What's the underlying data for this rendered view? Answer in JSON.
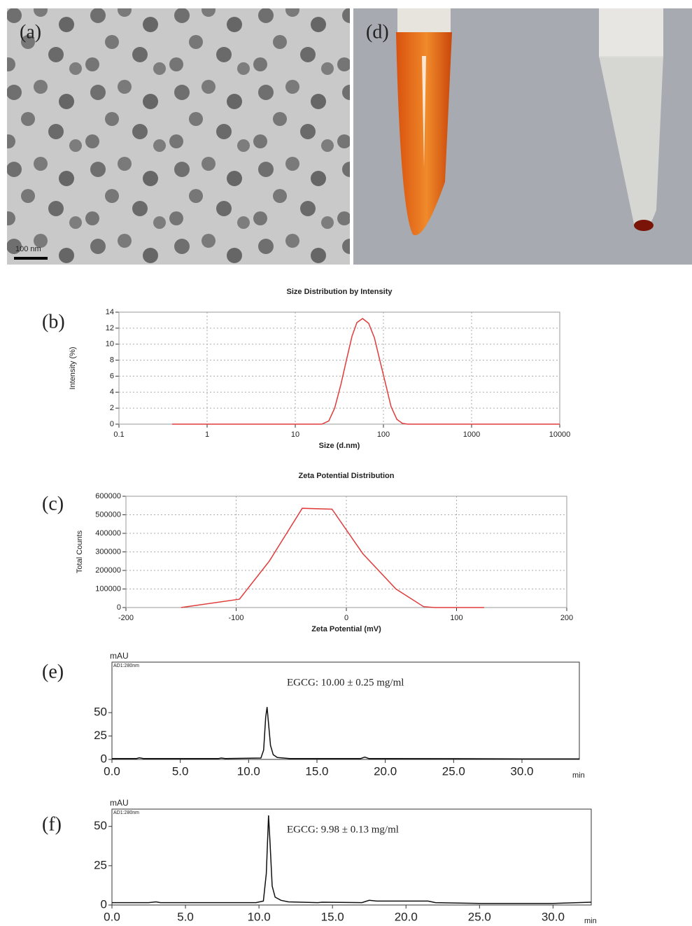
{
  "images": [
    {
      "label": "(a)",
      "scale_bar": "100 nm"
    },
    {
      "label": "(d)"
    }
  ],
  "chart_data": [
    {
      "type": "line",
      "panel_label": "(b)",
      "title": "Size Distribution by Intensity",
      "xlabel": "Size (d.nm)",
      "ylabel": "Intensity (%)",
      "xscale": "log",
      "grid": true,
      "color": "#e03c3c",
      "x": [
        0.4,
        1,
        3,
        10,
        20,
        24,
        28,
        33,
        38,
        44,
        50,
        58,
        68,
        79,
        91,
        106,
        122,
        142,
        164,
        190,
        300,
        1000,
        3000,
        10000
      ],
      "values": [
        0,
        0,
        0,
        0,
        0,
        0.4,
        2,
        5,
        8,
        11,
        12.7,
        13.2,
        12.6,
        10.8,
        8,
        5,
        2.2,
        0.6,
        0.1,
        0,
        0,
        0,
        0,
        0
      ],
      "xlim": [
        0.1,
        10000
      ],
      "xticks": [
        0.1,
        1,
        10,
        100,
        1000,
        10000
      ],
      "ylim": [
        0,
        14
      ],
      "yticks": [
        0,
        2,
        4,
        6,
        8,
        10,
        12,
        14
      ]
    },
    {
      "type": "line",
      "panel_label": "(c)",
      "title": "Zeta Potential Distribution",
      "xlabel": "Zeta Potential (mV)",
      "ylabel": "Total Counts",
      "grid": true,
      "color": "#e03c3c",
      "x": [
        -150,
        -97,
        -70,
        -40,
        -13,
        15,
        45,
        70,
        80,
        125
      ],
      "values": [
        0,
        45000,
        250000,
        535000,
        530000,
        290000,
        100000,
        5000,
        0,
        0
      ],
      "xlim": [
        -200,
        200
      ],
      "xticks": [
        -200,
        -100,
        0,
        100,
        200
      ],
      "ylim": [
        0,
        600000
      ],
      "yticks": [
        0,
        100000,
        200000,
        300000,
        400000,
        500000,
        600000
      ]
    },
    {
      "type": "line",
      "panel_label": "(e)",
      "ylabel": "mAU",
      "detector": "AD1:280nm",
      "annotation": "EGCG: 10.00 ± 0.25 mg/ml",
      "xlabel": "min",
      "grid": false,
      "color": "#111111",
      "x": [
        0,
        1.8,
        2,
        2.3,
        7.8,
        8,
        8.3,
        10.9,
        11.1,
        11.25,
        11.35,
        11.45,
        11.6,
        11.8,
        12.1,
        13,
        18.2,
        18.5,
        18.8,
        20,
        25,
        30,
        34.2
      ],
      "values": [
        1,
        1,
        1.8,
        1,
        1,
        1.5,
        1,
        1.5,
        10,
        45,
        56,
        40,
        15,
        5,
        2,
        1,
        1,
        2.5,
        1,
        1,
        0.8,
        0.6,
        0.5
      ],
      "xlim": [
        0,
        34.2
      ],
      "xticks": [
        {
          "value": 0,
          "label": "0.0"
        },
        {
          "value": 5,
          "label": "5.0"
        },
        {
          "value": 10,
          "label": "10.0"
        },
        {
          "value": 15,
          "label": "15.0"
        },
        {
          "value": 20,
          "label": "20.0"
        },
        {
          "value": 25,
          "label": "25.0"
        },
        {
          "value": 30,
          "label": "30.0"
        }
      ],
      "ylim": [
        0,
        104
      ],
      "yticks": [
        0,
        25,
        50
      ]
    },
    {
      "type": "line",
      "panel_label": "(f)",
      "ylabel": "mAU",
      "detector": "AD1:280nm",
      "annotation": "EGCG: 9.98 ± 0.13 mg/ml",
      "xlabel": "min",
      "grid": false,
      "color": "#111111",
      "x": [
        0,
        2.5,
        3,
        3.3,
        9.8,
        10.3,
        10.5,
        10.65,
        10.75,
        10.9,
        11.1,
        11.5,
        12,
        14,
        14.3,
        17,
        17.5,
        18,
        21.5,
        22,
        25,
        30,
        32.6
      ],
      "values": [
        1.5,
        1.5,
        2,
        1.5,
        1.5,
        2.5,
        20,
        57,
        40,
        12,
        5,
        3,
        2,
        1.5,
        1.8,
        1.5,
        3,
        2.5,
        2.5,
        1.5,
        1,
        1,
        1.8
      ],
      "xlim": [
        0,
        32.6
      ],
      "xticks": [
        {
          "value": 0,
          "label": "0.0"
        },
        {
          "value": 5,
          "label": "5.0"
        },
        {
          "value": 10,
          "label": "10.0"
        },
        {
          "value": 15,
          "label": "15.0"
        },
        {
          "value": 20,
          "label": "20.0"
        },
        {
          "value": 25,
          "label": "25.0"
        },
        {
          "value": 30,
          "label": "30.0"
        }
      ],
      "ylim": [
        0,
        61
      ],
      "yticks": [
        0,
        25,
        50
      ]
    }
  ]
}
